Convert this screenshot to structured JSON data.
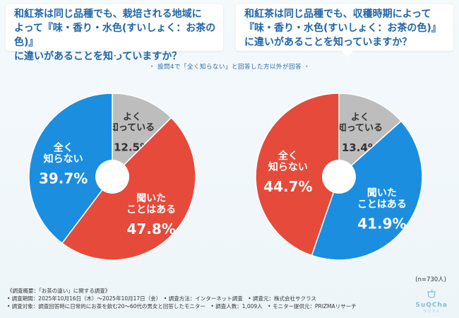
{
  "questions": [
    "和紅茶は同じ品種でも、栽培される地域に\nよって『味・香り・水色(すいしょく：お茶の色)』\nに違いがあることを知っていますか？",
    "和紅茶は同じ品種でも、収穫時期によって\n『味・香り・水色(すいしょく：お茶の色)』\nに違いがあることを知っていますか？"
  ],
  "note": "・ 設問4で「全く知らない」と回答した方以外が回答 ・",
  "colors": {
    "gray": "#bdbdbd",
    "red": "#e64a3b",
    "blue": "#1b8ee0"
  },
  "chart_data": [
    {
      "type": "pie",
      "labels": [
        "よく知っている",
        "聞いたことはある",
        "全く知らない"
      ],
      "values": [
        12.5,
        47.8,
        39.7
      ],
      "value_labels": [
        "12.5%",
        "47.8%",
        "39.7%"
      ],
      "colors": [
        "#bdbdbd",
        "#e64a3b",
        "#1b8ee0"
      ]
    },
    {
      "type": "pie",
      "labels": [
        "よく知っている",
        "聞いたことはある",
        "全く知らない"
      ],
      "values": [
        13.4,
        41.9,
        44.7
      ],
      "value_labels": [
        "13.4%",
        "41.9%",
        "44.7%"
      ],
      "colors": [
        "#bdbdbd",
        "#1b8ee0",
        "#e64a3b"
      ]
    }
  ],
  "n_label": "(n=730人)",
  "footer": {
    "line1": "《調査概要：「お茶の違い」に関する調査》",
    "line2": "• 調査期間：2025年10月16日（木）～2025年10月17日（金）　• 調査方法：インターネット調査　• 調査元：株式会社サクラス",
    "line3": "• 調査対象：調査回答時に日常的にお茶を飲む20～60代の男女と回答したモニター　• 調査人数：1,009人　• モニター提供元：PRIZMAリサーチ"
  },
  "logo": {
    "text": "SuQCha",
    "sub": "サクラス"
  }
}
